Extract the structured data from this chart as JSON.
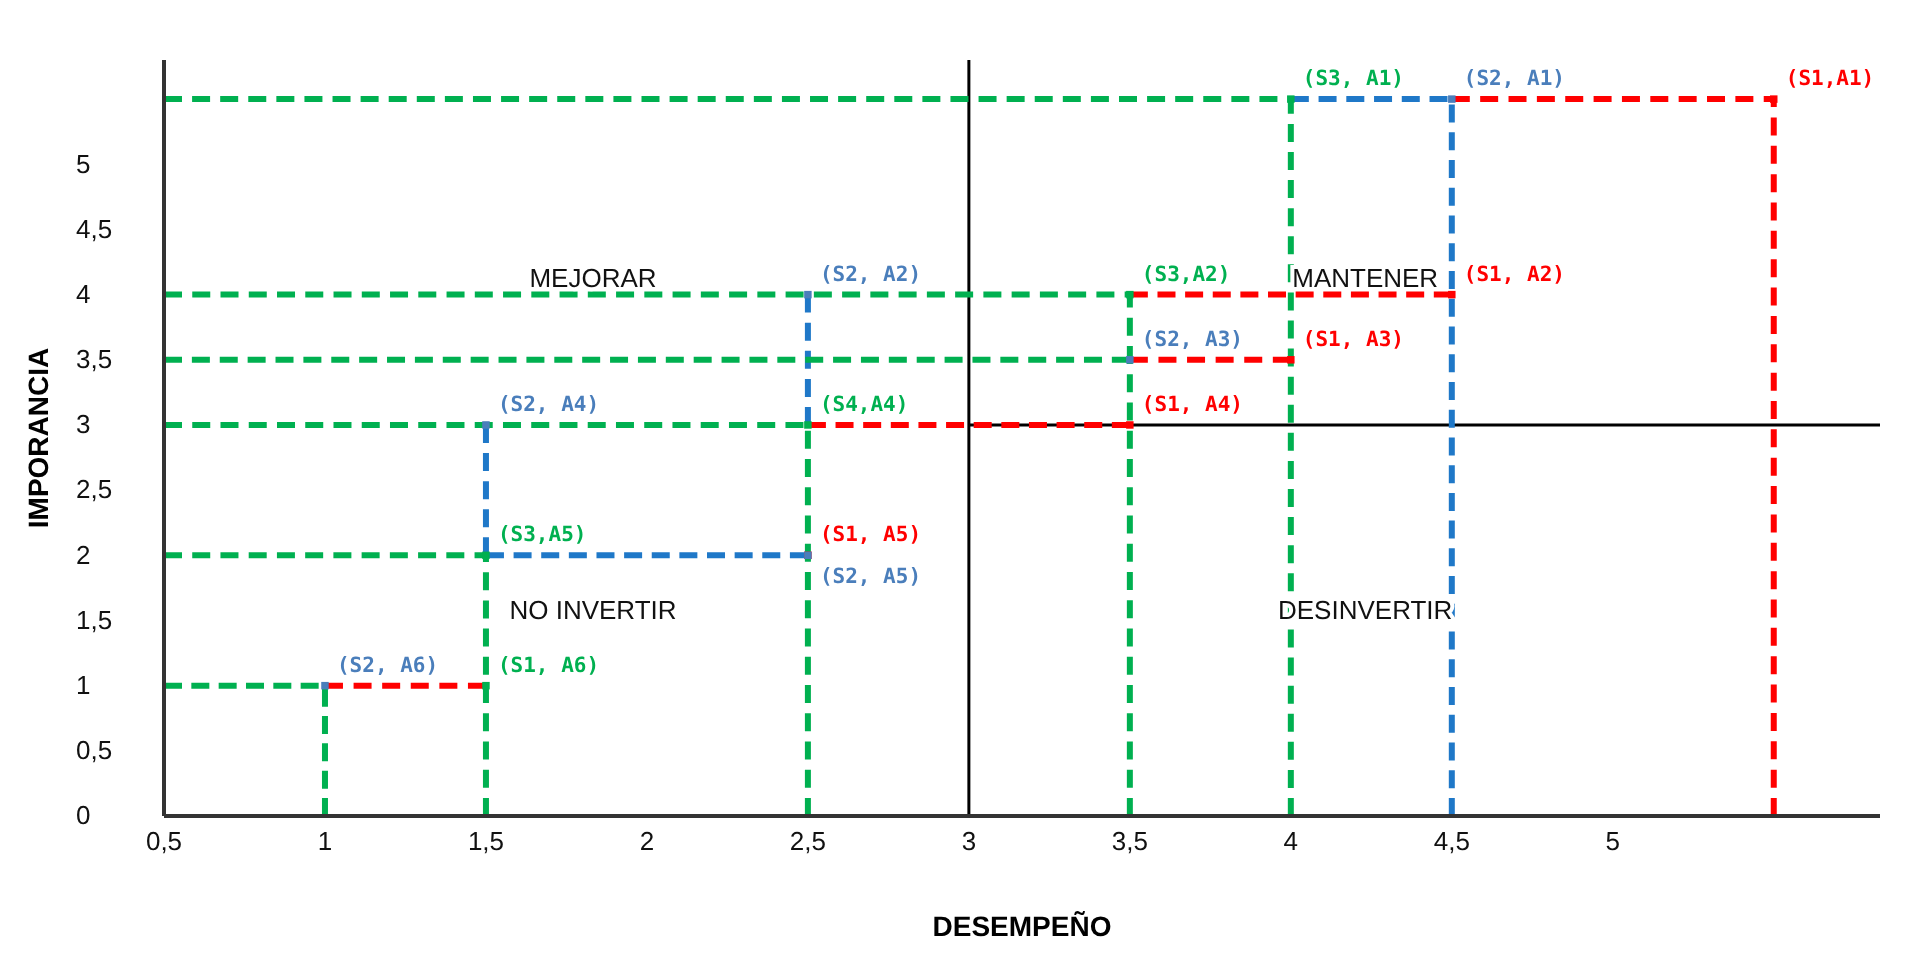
{
  "chart_data": {
    "type": "line",
    "xlabel": "DESEMPEÑO",
    "ylabel": "IMPORANCIA",
    "xlim": [
      0.5,
      5.83
    ],
    "ylim": [
      0,
      5.8
    ],
    "xticks": [
      {
        "value": 0.5,
        "label": "0,5"
      },
      1,
      {
        "value": 1.5,
        "label": "1,5"
      },
      2,
      {
        "value": 2.5,
        "label": "2,5"
      },
      3,
      {
        "value": 3.5,
        "label": "3,5"
      },
      4,
      {
        "value": 4.5,
        "label": "4,5"
      },
      5
    ],
    "yticks": [
      0,
      {
        "value": 0.5,
        "label": "0,5"
      },
      1,
      {
        "value": 1.5,
        "label": "1,5"
      },
      2,
      {
        "value": 2.5,
        "label": "2,5"
      },
      3,
      {
        "value": 3.5,
        "label": "3,5"
      },
      4,
      {
        "value": 4.5,
        "label": "4,5"
      },
      5
    ],
    "grid": false,
    "line_style": "dashed",
    "marker": "none",
    "annotations": [
      "MEJORAR",
      "MANTENER",
      "NO INVERTIR",
      "DESINVERTIR"
    ],
    "series": [
      {
        "line_style": "solid",
        "color": "#000000",
        "x": [
          3,
          3
        ],
        "values": [
          0,
          5.8
        ]
      },
      {
        "line_style": "solid",
        "color": "#000000",
        "x": [
          3,
          5.83
        ],
        "values": [
          3,
          3
        ]
      },
      {
        "color": "#00b050",
        "x": [
          0.5,
          4,
          4
        ],
        "values": [
          5.5,
          5.5,
          0
        ]
      },
      {
        "color": "#1f78c8",
        "x": [
          4,
          4.5,
          4.5
        ],
        "values": [
          5.5,
          5.5,
          0
        ]
      },
      {
        "color": "#ff0000",
        "x": [
          4.5,
          5.5,
          5.5
        ],
        "values": [
          5.5,
          5.5,
          0
        ]
      },
      {
        "color": "#00b050",
        "x": [
          0.5,
          3.5,
          3.5
        ],
        "values": [
          4,
          4,
          0
        ]
      },
      {
        "color": "#1f78c8",
        "x": [
          2.5,
          2.5
        ],
        "values": [
          4,
          3
        ]
      },
      {
        "color": "#ff0000",
        "x": [
          3.5,
          4.5
        ],
        "values": [
          4,
          4
        ]
      },
      {
        "color": "#00b050",
        "x": [
          0.5,
          3.5
        ],
        "values": [
          3.5,
          3.5
        ]
      },
      {
        "color": "#ff0000",
        "x": [
          3.5,
          4
        ],
        "values": [
          3.5,
          3.5
        ]
      },
      {
        "color": "#00b050",
        "x": [
          0.5,
          1.5,
          2.5,
          2.5
        ],
        "values": [
          3,
          3,
          3,
          0
        ]
      },
      {
        "color": "#1f78c8",
        "x": [
          1.5,
          1.5
        ],
        "values": [
          3,
          2
        ]
      },
      {
        "color": "#ff0000",
        "x": [
          2.5,
          3.5
        ],
        "values": [
          3,
          3
        ]
      },
      {
        "color": "#00b050",
        "x": [
          0.5,
          1.5,
          1.5
        ],
        "values": [
          2,
          2,
          0
        ]
      },
      {
        "color": "#1f78c8",
        "x": [
          1.5,
          2.5
        ],
        "values": [
          2,
          2
        ]
      },
      {
        "color": "#00b050",
        "x": [
          0.5,
          1,
          1
        ],
        "values": [
          1,
          1,
          0
        ]
      },
      {
        "color": "#ff0000",
        "x": [
          1,
          1.5
        ],
        "values": [
          1,
          1
        ]
      },
      {
        "type": "scatter",
        "marker": "square",
        "color": "#ff0000",
        "x": [
          5.5,
          4.5,
          4,
          3.5,
          2.5
        ],
        "values": [
          5.5,
          4,
          3.5,
          3,
          2
        ],
        "value_labels": [
          "(S1,A1)",
          "(S1, A2)",
          "(S1, A3)",
          "(S1, A4)",
          "(S1, A5)"
        ]
      },
      {
        "type": "scatter",
        "marker": "square",
        "color": "#4a7ebb",
        "x": [
          4.5,
          2.5,
          3.5,
          1.5,
          2.5,
          1
        ],
        "values": [
          5.5,
          4,
          3.5,
          3,
          2,
          1
        ],
        "value_labels": [
          "(S2, A1)",
          "(S2, A2)",
          "(S2, A3)",
          "(S2, A4)",
          "(S2, A5)",
          "(S2, A6)"
        ]
      },
      {
        "type": "scatter",
        "marker": "square",
        "color": "#00b050",
        "x": [
          4,
          3.5,
          2.5,
          1.5,
          1.5
        ],
        "values": [
          5.5,
          4,
          3,
          2,
          1
        ],
        "value_labels": [
          "(S3, A1)",
          "(S3,A2)",
          "(S4,A4)",
          "(S3,A5)",
          "(S1, A6)"
        ]
      }
    ]
  }
}
